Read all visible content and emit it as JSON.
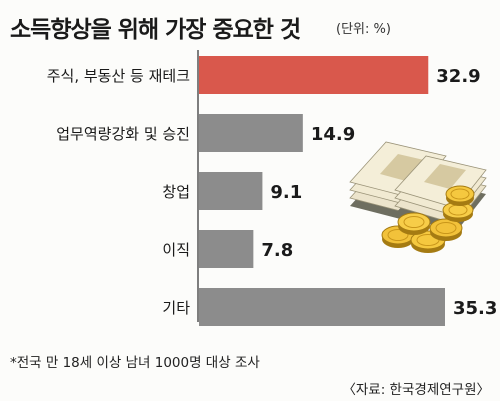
{
  "title": "소득향상을 위해 가장 중요한 것",
  "unit": "(단위: %)",
  "chart_data": {
    "type": "bar",
    "orientation": "horizontal",
    "categories": [
      "주식, 부동산 등 재테크",
      "업무역량강화 및 승진",
      "창업",
      "이직",
      "기타"
    ],
    "values": [
      32.9,
      14.9,
      9.1,
      7.8,
      35.3
    ],
    "value_labels": [
      "32.9",
      "14.9",
      "9.1",
      "7.8",
      "35.3"
    ],
    "highlight_index": 0,
    "colors": {
      "bar": "#8c8c8c",
      "highlight": "#d9584c",
      "axis": "#555555"
    },
    "xlim": [
      0,
      35.3
    ],
    "grid": false,
    "legend": "none"
  },
  "illustration": {
    "icon": "money-stack-and-coins-icon"
  },
  "footnote": "*전국 만 18세 이상 남녀 1000명 대상 조사",
  "source": "〈자료: 한국경제연구원〉"
}
